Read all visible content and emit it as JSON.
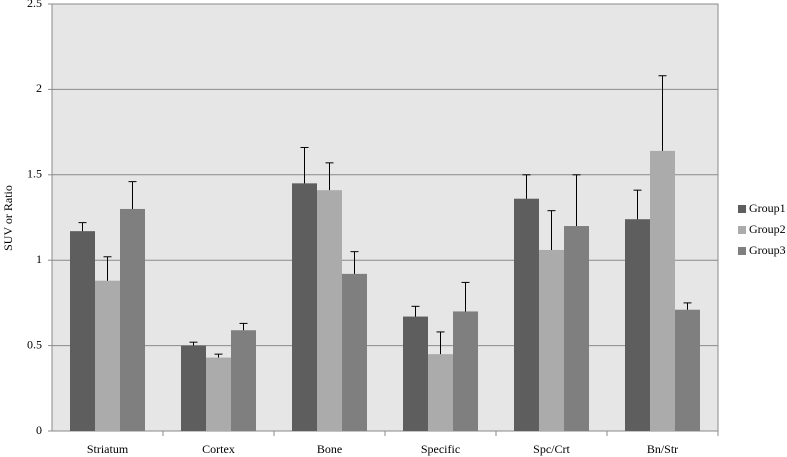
{
  "chart_data": {
    "type": "bar",
    "y_label": "SUV or Ratio",
    "categories": [
      "Striatum",
      "Cortex",
      "Bone",
      "Specific",
      "Spc/Crt",
      "Bn/Str"
    ],
    "series": [
      {
        "name": "Group1",
        "color": "#5e5e5e",
        "values": [
          1.17,
          0.5,
          1.45,
          0.67,
          1.36,
          1.24
        ],
        "errors": [
          0.05,
          0.02,
          0.21,
          0.06,
          0.14,
          0.17
        ]
      },
      {
        "name": "Group2",
        "color": "#ababab",
        "values": [
          0.88,
          0.43,
          1.41,
          0.45,
          1.06,
          1.64
        ],
        "errors": [
          0.14,
          0.02,
          0.16,
          0.13,
          0.23,
          0.44
        ]
      },
      {
        "name": "Group3",
        "color": "#7f7f7f",
        "values": [
          1.3,
          0.59,
          0.92,
          0.7,
          1.2,
          0.71
        ],
        "errors": [
          0.16,
          0.04,
          0.13,
          0.17,
          0.3,
          0.04
        ]
      }
    ],
    "ylim": [
      0,
      2.5
    ],
    "yticks": [
      0,
      0.5,
      1,
      1.5,
      2,
      2.5
    ],
    "grid": true,
    "legend": "right"
  }
}
